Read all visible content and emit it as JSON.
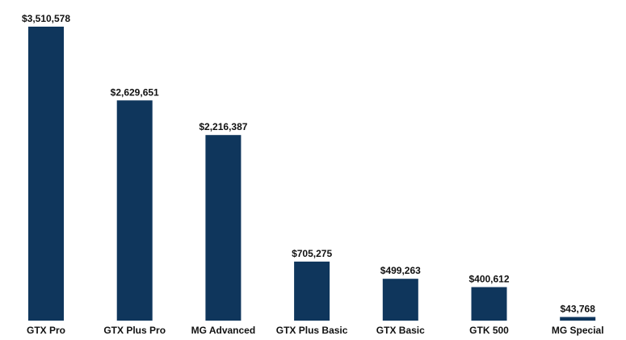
{
  "chart_data": {
    "type": "bar",
    "title": "",
    "xlabel": "",
    "ylabel": "",
    "categories": [
      "GTX Pro",
      "GTX Plus Pro",
      "MG Advanced",
      "GTX Plus Basic",
      "GTX Basic",
      "GTK 500",
      "MG Special"
    ],
    "values": [
      3510578,
      2629651,
      2216387,
      705275,
      499263,
      400612,
      43768
    ],
    "data_labels": [
      "$3,510,578",
      "$2,629,651",
      "$2,216,387",
      "$705,275",
      "$499,263",
      "$400,612",
      "$43,768"
    ],
    "ylim": [
      0,
      3510578
    ],
    "grid": false,
    "legend": "none",
    "bar_color": "#0f365c"
  }
}
